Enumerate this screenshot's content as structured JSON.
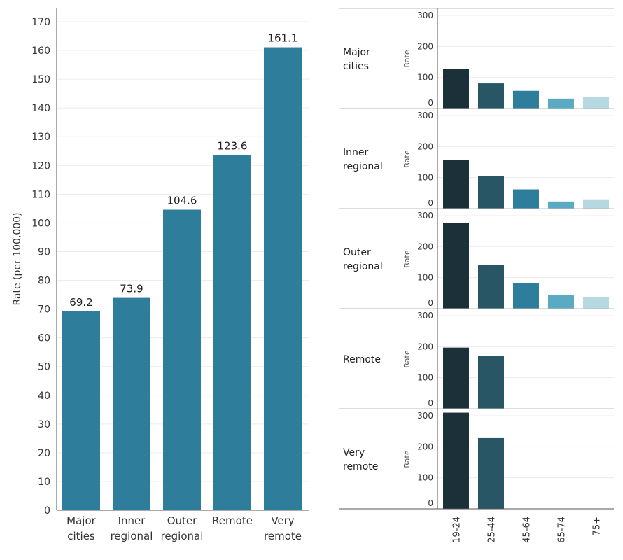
{
  "colors": {
    "left_bar": "#2e7d9a",
    "age_bars": [
      "#1c3039",
      "#285664",
      "#2e7d9a",
      "#5aaac3",
      "#b6d8e1"
    ],
    "grid": "#ececec",
    "axis": "#555555",
    "text": "#333333"
  },
  "chart_data": [
    {
      "type": "bar",
      "ylabel": "Rate (per 100,000)",
      "ylim": [
        0,
        170
      ],
      "yticks": [
        0,
        10,
        20,
        30,
        40,
        50,
        60,
        70,
        80,
        90,
        100,
        110,
        120,
        130,
        140,
        150,
        160,
        170
      ],
      "categories": [
        {
          "line1": "Major",
          "line2": "cities"
        },
        {
          "line1": "Inner",
          "line2": "regional"
        },
        {
          "line1": "Outer",
          "line2": "regional"
        },
        {
          "line1": "Remote",
          "line2": ""
        },
        {
          "line1": "Very",
          "line2": "remote"
        }
      ],
      "values": [
        69.2,
        73.9,
        104.6,
        123.6,
        161.1
      ],
      "value_labels": [
        "69.2",
        "73.9",
        "104.6",
        "123.6",
        "161.1"
      ]
    },
    {
      "type": "bar",
      "axis_label": "Rate",
      "ylim": [
        0,
        300
      ],
      "yticks": [
        0,
        100,
        200,
        300
      ],
      "age_groups": [
        "19-24",
        "25-44",
        "45-64",
        "65-74",
        "75+"
      ],
      "panels": [
        {
          "line1": "Major",
          "line2": "cities",
          "values": [
            128,
            81,
            57,
            32,
            38
          ]
        },
        {
          "line1": "Inner",
          "line2": "regional",
          "values": [
            157,
            106,
            62,
            23,
            30
          ]
        },
        {
          "line1": "Outer",
          "line2": "regional",
          "values": [
            276,
            140,
            82,
            43,
            38
          ]
        },
        {
          "line1": "Remote",
          "line2": "",
          "values": [
            197,
            171,
            null,
            null,
            null
          ]
        },
        {
          "line1": "Very",
          "line2": "remote",
          "values": [
            310,
            228,
            null,
            null,
            null
          ]
        }
      ]
    }
  ]
}
